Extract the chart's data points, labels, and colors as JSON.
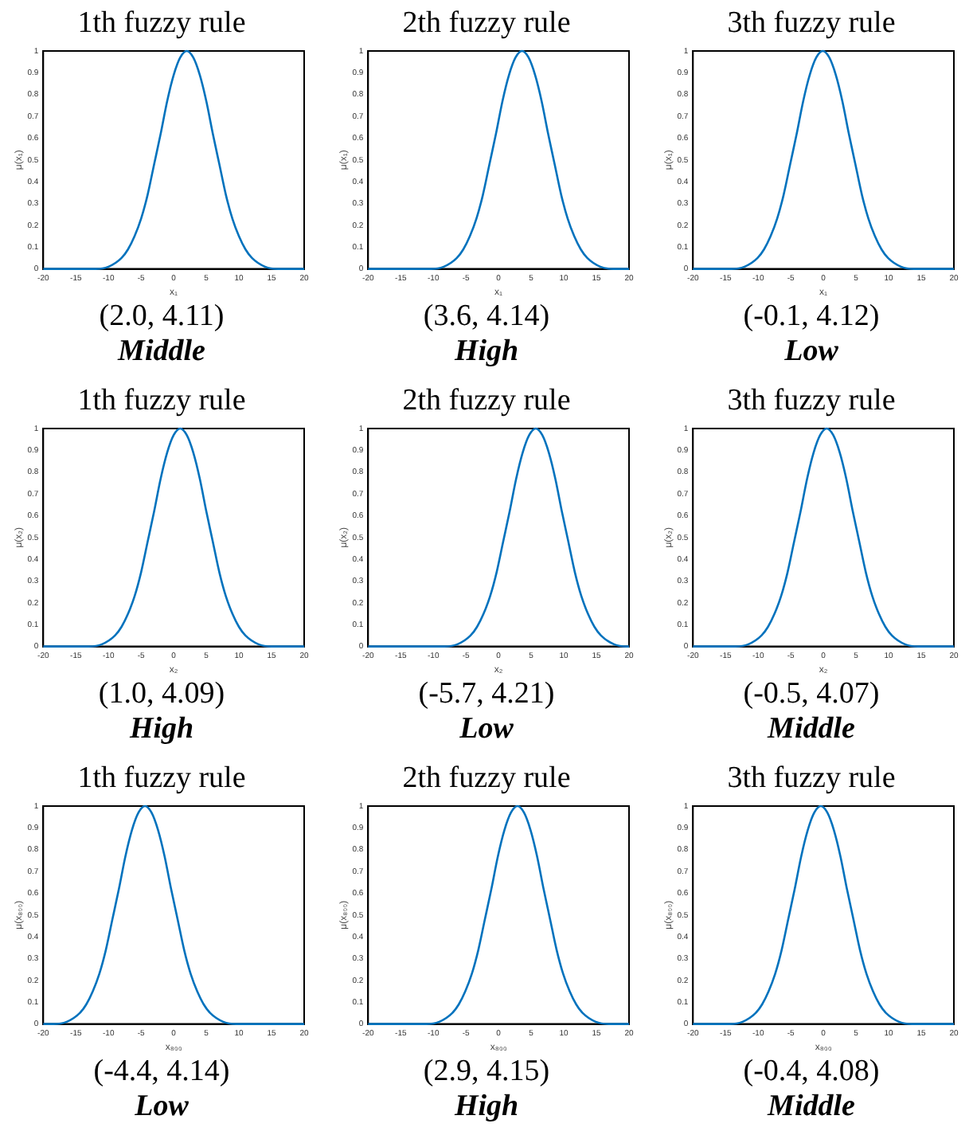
{
  "chart_data": [
    {
      "type": "line",
      "title": "1th fuzzy rule",
      "xlabel": "x₁",
      "ylabel": "μ(x₁)",
      "color": "#0072bd",
      "marker": "none",
      "grid": false,
      "xlim": [
        -20,
        20
      ],
      "xticks": [
        -20,
        -15,
        -10,
        -5,
        0,
        5,
        10,
        15,
        20
      ],
      "ylim": [
        0,
        1
      ],
      "yticks": [
        0,
        0.1,
        0.2,
        0.3,
        0.4,
        0.5,
        0.6,
        0.7,
        0.8,
        0.9,
        1
      ],
      "annotations": [
        "(2.0, 4.11)",
        "Middle"
      ],
      "x": [
        -20,
        -12,
        -10,
        -8,
        -7,
        -6,
        -5,
        -4,
        -3,
        -2,
        -1,
        0,
        1,
        2,
        3,
        4,
        5,
        6,
        7,
        8,
        9,
        10,
        11,
        12,
        14,
        16,
        20
      ],
      "values": [
        0,
        0,
        0.01,
        0.05,
        0.09,
        0.15,
        0.23,
        0.34,
        0.48,
        0.62,
        0.77,
        0.89,
        0.97,
        1,
        0.97,
        0.89,
        0.77,
        0.62,
        0.48,
        0.34,
        0.23,
        0.15,
        0.09,
        0.05,
        0.01,
        0,
        0
      ]
    },
    {
      "type": "line",
      "title": "2th fuzzy rule",
      "xlabel": "x₁",
      "ylabel": "μ(x₁)",
      "color": "#0072bd",
      "marker": "none",
      "grid": false,
      "xlim": [
        -20,
        20
      ],
      "xticks": [
        -20,
        -15,
        -10,
        -5,
        0,
        5,
        10,
        15,
        20
      ],
      "ylim": [
        0,
        1
      ],
      "yticks": [
        0,
        0.1,
        0.2,
        0.3,
        0.4,
        0.5,
        0.6,
        0.7,
        0.8,
        0.9,
        1
      ],
      "annotations": [
        "(3.6, 4.14)",
        "High"
      ],
      "x": [
        -20,
        -10.4,
        -8.4,
        -6.4,
        -5.4,
        -4.4,
        -3.4,
        -2.4,
        -1.4,
        -0.4,
        0.6,
        1.6,
        2.6,
        3.6,
        4.6,
        5.6,
        6.6,
        7.6,
        8.6,
        9.6,
        10.6,
        11.6,
        12.6,
        13.6,
        15.6,
        17.6,
        20
      ],
      "values": [
        0,
        0,
        0.01,
        0.05,
        0.09,
        0.15,
        0.23,
        0.34,
        0.48,
        0.62,
        0.77,
        0.89,
        0.97,
        1,
        0.97,
        0.89,
        0.77,
        0.62,
        0.48,
        0.34,
        0.23,
        0.15,
        0.09,
        0.05,
        0.01,
        0,
        0
      ]
    },
    {
      "type": "line",
      "title": "3th fuzzy rule",
      "xlabel": "x₁",
      "ylabel": "μ(x₁)",
      "color": "#0072bd",
      "marker": "none",
      "grid": false,
      "xlim": [
        -20,
        20
      ],
      "xticks": [
        -20,
        -15,
        -10,
        -5,
        0,
        5,
        10,
        15,
        20
      ],
      "ylim": [
        0,
        1
      ],
      "yticks": [
        0,
        0.1,
        0.2,
        0.3,
        0.4,
        0.5,
        0.6,
        0.7,
        0.8,
        0.9,
        1
      ],
      "annotations": [
        "(-0.1, 4.12)",
        "Low"
      ],
      "x": [
        -20,
        -14.1,
        -12.1,
        -10.1,
        -9.1,
        -8.1,
        -7.1,
        -6.1,
        -5.1,
        -4.1,
        -3.1,
        -2.1,
        -1.1,
        -0.1,
        0.9,
        1.9,
        2.9,
        3.9,
        4.9,
        5.9,
        6.9,
        7.9,
        8.9,
        9.9,
        11.9,
        13.9,
        20
      ],
      "values": [
        0,
        0,
        0.01,
        0.05,
        0.09,
        0.15,
        0.23,
        0.34,
        0.48,
        0.62,
        0.77,
        0.89,
        0.97,
        1,
        0.97,
        0.89,
        0.77,
        0.62,
        0.48,
        0.34,
        0.23,
        0.15,
        0.09,
        0.05,
        0.01,
        0,
        0
      ]
    },
    {
      "type": "line",
      "title": "1th fuzzy rule",
      "xlabel": "x₂",
      "ylabel": "μ(x₂)",
      "color": "#0072bd",
      "marker": "none",
      "grid": false,
      "xlim": [
        -20,
        20
      ],
      "xticks": [
        -20,
        -15,
        -10,
        -5,
        0,
        5,
        10,
        15,
        20
      ],
      "ylim": [
        0,
        1
      ],
      "yticks": [
        0,
        0.1,
        0.2,
        0.3,
        0.4,
        0.5,
        0.6,
        0.7,
        0.8,
        0.9,
        1
      ],
      "annotations": [
        "(1.0, 4.09)",
        "High"
      ],
      "x": [
        -20,
        -13,
        -11,
        -9,
        -8,
        -7,
        -6,
        -5,
        -4,
        -3,
        -2,
        -1,
        0,
        1,
        2,
        3,
        4,
        5,
        6,
        7,
        8,
        9,
        10,
        11,
        13,
        15,
        20
      ],
      "values": [
        0,
        0,
        0.01,
        0.05,
        0.09,
        0.15,
        0.23,
        0.34,
        0.48,
        0.62,
        0.77,
        0.89,
        0.97,
        1,
        0.97,
        0.89,
        0.77,
        0.62,
        0.48,
        0.34,
        0.23,
        0.15,
        0.09,
        0.05,
        0.01,
        0,
        0
      ]
    },
    {
      "type": "line",
      "title": "2th fuzzy rule",
      "xlabel": "x₂",
      "ylabel": "μ(x₂)",
      "color": "#0072bd",
      "marker": "none",
      "grid": false,
      "xlim": [
        -20,
        20
      ],
      "xticks": [
        -20,
        -15,
        -10,
        -5,
        0,
        5,
        10,
        15,
        20
      ],
      "ylim": [
        0,
        1
      ],
      "yticks": [
        0,
        0.1,
        0.2,
        0.3,
        0.4,
        0.5,
        0.6,
        0.7,
        0.8,
        0.9,
        1
      ],
      "annotations": [
        "(-5.7, 4.21)",
        "Low"
      ],
      "x": [
        -20,
        -8.3,
        -6.3,
        -4.3,
        -3.3,
        -2.3,
        -1.3,
        -0.3,
        0.7,
        1.7,
        2.7,
        3.7,
        4.7,
        5.7,
        6.7,
        7.7,
        8.7,
        9.7,
        10.7,
        11.7,
        12.7,
        13.7,
        14.7,
        15.7,
        17.7,
        19.7,
        20
      ],
      "values": [
        0,
        0,
        0.01,
        0.05,
        0.09,
        0.15,
        0.23,
        0.34,
        0.48,
        0.62,
        0.77,
        0.89,
        0.97,
        1,
        0.97,
        0.89,
        0.77,
        0.62,
        0.48,
        0.34,
        0.23,
        0.15,
        0.09,
        0.05,
        0.01,
        0,
        0
      ]
    },
    {
      "type": "line",
      "title": "3th fuzzy rule",
      "xlabel": "x₂",
      "ylabel": "μ(x₂)",
      "color": "#0072bd",
      "marker": "none",
      "grid": false,
      "xlim": [
        -20,
        20
      ],
      "xticks": [
        -20,
        -15,
        -10,
        -5,
        0,
        5,
        10,
        15,
        20
      ],
      "ylim": [
        0,
        1
      ],
      "yticks": [
        0,
        0.1,
        0.2,
        0.3,
        0.4,
        0.5,
        0.6,
        0.7,
        0.8,
        0.9,
        1
      ],
      "annotations": [
        "(-0.5, 4.07)",
        "Middle"
      ],
      "x": [
        -20,
        -13.5,
        -11.5,
        -9.5,
        -8.5,
        -7.5,
        -6.5,
        -5.5,
        -4.5,
        -3.5,
        -2.5,
        -1.5,
        -0.5,
        0.5,
        1.5,
        2.5,
        3.5,
        4.5,
        5.5,
        6.5,
        7.5,
        8.5,
        9.5,
        10.5,
        12.5,
        14.5,
        20
      ],
      "values": [
        0,
        0,
        0.01,
        0.05,
        0.09,
        0.15,
        0.23,
        0.34,
        0.48,
        0.62,
        0.77,
        0.89,
        0.97,
        1,
        0.97,
        0.89,
        0.77,
        0.62,
        0.48,
        0.34,
        0.23,
        0.15,
        0.09,
        0.05,
        0.01,
        0,
        0
      ]
    },
    {
      "type": "line",
      "title": "1th fuzzy rule",
      "xlabel": "x₈₀₀",
      "ylabel": "μ(x₈₀₀)",
      "color": "#0072bd",
      "marker": "none",
      "grid": false,
      "xlim": [
        -20,
        20
      ],
      "xticks": [
        -20,
        -15,
        -10,
        -5,
        0,
        5,
        10,
        15,
        20
      ],
      "ylim": [
        0,
        1
      ],
      "yticks": [
        0,
        0.1,
        0.2,
        0.3,
        0.4,
        0.5,
        0.6,
        0.7,
        0.8,
        0.9,
        1
      ],
      "annotations": [
        "(-4.4, 4.14)",
        "Low"
      ],
      "x": [
        -20,
        -18.4,
        -16.4,
        -14.4,
        -13.4,
        -12.4,
        -11.4,
        -10.4,
        -9.4,
        -8.4,
        -7.4,
        -6.4,
        -5.4,
        -4.4,
        -3.4,
        -2.4,
        -1.4,
        -0.4,
        0.6,
        1.6,
        2.6,
        3.6,
        4.6,
        5.6,
        7.6,
        9.6,
        20
      ],
      "values": [
        0,
        0,
        0.01,
        0.05,
        0.09,
        0.15,
        0.23,
        0.34,
        0.48,
        0.62,
        0.77,
        0.89,
        0.97,
        1,
        0.97,
        0.89,
        0.77,
        0.62,
        0.48,
        0.34,
        0.23,
        0.15,
        0.09,
        0.05,
        0.01,
        0,
        0
      ]
    },
    {
      "type": "line",
      "title": "2th fuzzy rule",
      "xlabel": "x₈₀₀",
      "ylabel": "μ(x₈₀₀)",
      "color": "#0072bd",
      "marker": "none",
      "grid": false,
      "xlim": [
        -20,
        20
      ],
      "xticks": [
        -20,
        -15,
        -10,
        -5,
        0,
        5,
        10,
        15,
        20
      ],
      "ylim": [
        0,
        1
      ],
      "yticks": [
        0,
        0.1,
        0.2,
        0.3,
        0.4,
        0.5,
        0.6,
        0.7,
        0.8,
        0.9,
        1
      ],
      "annotations": [
        "(2.9, 4.15)",
        "High"
      ],
      "x": [
        -20,
        -11.1,
        -9.1,
        -7.1,
        -6.1,
        -5.1,
        -4.1,
        -3.1,
        -2.1,
        -1.1,
        -0.1,
        0.9,
        1.9,
        2.9,
        3.9,
        4.9,
        5.9,
        6.9,
        7.9,
        8.9,
        9.9,
        10.9,
        11.9,
        12.9,
        14.9,
        16.9,
        20
      ],
      "values": [
        0,
        0,
        0.01,
        0.05,
        0.09,
        0.15,
        0.23,
        0.34,
        0.48,
        0.62,
        0.77,
        0.89,
        0.97,
        1,
        0.97,
        0.89,
        0.77,
        0.62,
        0.48,
        0.34,
        0.23,
        0.15,
        0.09,
        0.05,
        0.01,
        0,
        0
      ]
    },
    {
      "type": "line",
      "title": "3th fuzzy rule",
      "xlabel": "x₈₀₀",
      "ylabel": "μ(x₈₀₀)",
      "color": "#0072bd",
      "marker": "none",
      "grid": false,
      "xlim": [
        -20,
        20
      ],
      "xticks": [
        -20,
        -15,
        -10,
        -5,
        0,
        5,
        10,
        15,
        20
      ],
      "ylim": [
        0,
        1
      ],
      "yticks": [
        0,
        0.1,
        0.2,
        0.3,
        0.4,
        0.5,
        0.6,
        0.7,
        0.8,
        0.9,
        1
      ],
      "annotations": [
        "(-0.4, 4.08)",
        "Middle"
      ],
      "x": [
        -20,
        -14.4,
        -12.4,
        -10.4,
        -9.4,
        -8.4,
        -7.4,
        -6.4,
        -5.4,
        -4.4,
        -3.4,
        -2.4,
        -1.4,
        -0.4,
        0.6,
        1.6,
        2.6,
        3.6,
        4.6,
        5.6,
        6.6,
        7.6,
        8.6,
        9.6,
        11.6,
        13.6,
        20
      ],
      "values": [
        0,
        0,
        0.01,
        0.05,
        0.09,
        0.15,
        0.23,
        0.34,
        0.48,
        0.62,
        0.77,
        0.89,
        0.97,
        1,
        0.97,
        0.89,
        0.77,
        0.62,
        0.48,
        0.34,
        0.23,
        0.15,
        0.09,
        0.05,
        0.01,
        0,
        0
      ]
    }
  ]
}
